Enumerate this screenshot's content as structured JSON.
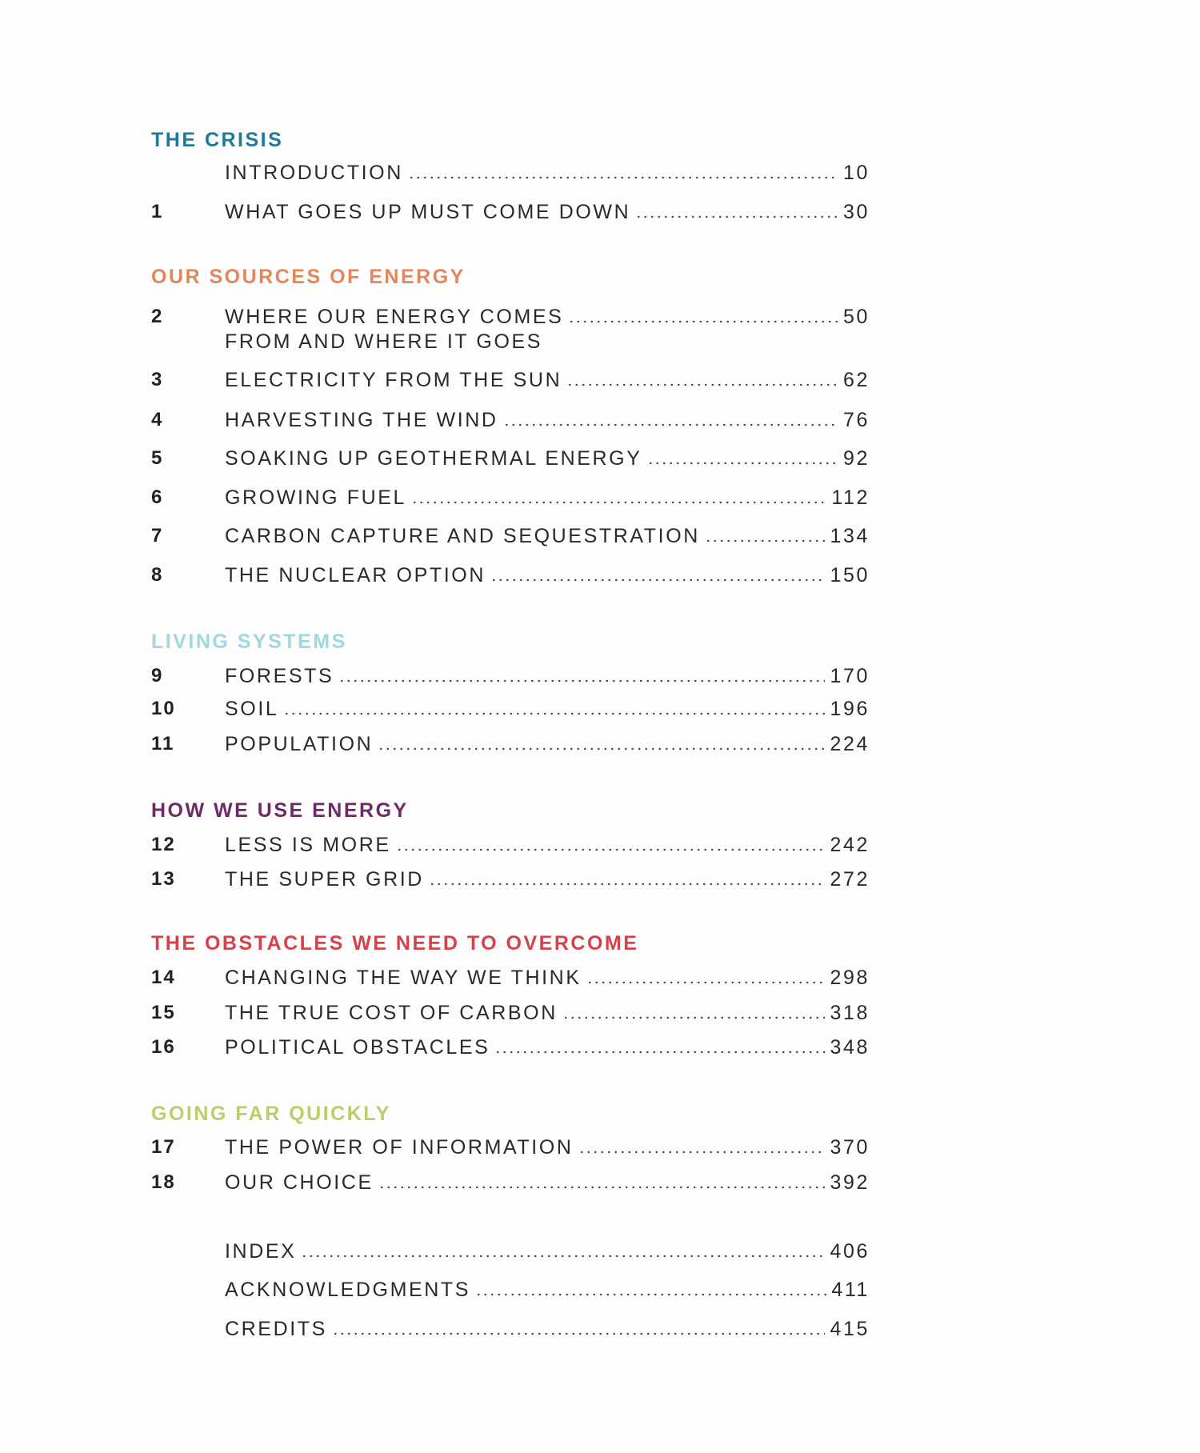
{
  "colors": {
    "the_crisis": "#1e7a9c",
    "our_sources_of_energy": "#e2875a",
    "living_systems": "#9fd9e0",
    "how_we_use_energy": "#6e2a66",
    "obstacles": "#d4434a",
    "going_far_quickly": "#b9cf6a"
  },
  "sections": [
    {
      "title": "THE CRISIS",
      "entries": [
        {
          "num": "",
          "title": "INTRODUCTION",
          "page": "10"
        },
        {
          "num": "1",
          "title": "WHAT GOES UP MUST COME DOWN",
          "page": "30"
        }
      ]
    },
    {
      "title": "OUR SOURCES OF ENERGY",
      "entries": [
        {
          "num": "2",
          "title": "WHERE OUR ENERGY COMES",
          "title_line2": "FROM AND WHERE IT GOES",
          "page": "50"
        },
        {
          "num": "3",
          "title": "ELECTRICITY FROM THE SUN",
          "page": "62"
        },
        {
          "num": "4",
          "title": "HARVESTING THE WIND",
          "page": "76"
        },
        {
          "num": "5",
          "title": "SOAKING UP GEOTHERMAL ENERGY",
          "page": "92"
        },
        {
          "num": "6",
          "title": "GROWING FUEL",
          "page": "112"
        },
        {
          "num": "7",
          "title": "CARBON CAPTURE AND SEQUESTRATION",
          "page": "134"
        },
        {
          "num": "8",
          "title": "THE NUCLEAR OPTION",
          "page": "150"
        }
      ]
    },
    {
      "title": "LIVING SYSTEMS",
      "entries": [
        {
          "num": "9",
          "title": "FORESTS",
          "page": "170"
        },
        {
          "num": "10",
          "title": "SOIL",
          "page": "196"
        },
        {
          "num": "11",
          "title": "POPULATION",
          "page": "224"
        }
      ]
    },
    {
      "title": "HOW WE USE ENERGY",
      "entries": [
        {
          "num": "12",
          "title": "LESS IS MORE",
          "page": "242"
        },
        {
          "num": "13",
          "title": "THE SUPER GRID",
          "page": "272"
        }
      ]
    },
    {
      "title": "THE OBSTACLES WE NEED TO OVERCOME",
      "entries": [
        {
          "num": "14",
          "title": "CHANGING THE WAY WE THINK",
          "page": "298"
        },
        {
          "num": "15",
          "title": "THE TRUE COST OF CARBON",
          "page": "318"
        },
        {
          "num": "16",
          "title": "POLITICAL OBSTACLES",
          "page": "348"
        }
      ]
    },
    {
      "title": "GOING FAR QUICKLY",
      "entries": [
        {
          "num": "17",
          "title": "THE POWER OF INFORMATION",
          "page": "370"
        },
        {
          "num": "18",
          "title": "OUR CHOICE",
          "page": "392"
        }
      ]
    }
  ],
  "back_matter": [
    {
      "title": "INDEX",
      "page": "406"
    },
    {
      "title": "ACKNOWLEDGMENTS",
      "page": "411"
    },
    {
      "title": "CREDITS",
      "page": "415"
    }
  ]
}
